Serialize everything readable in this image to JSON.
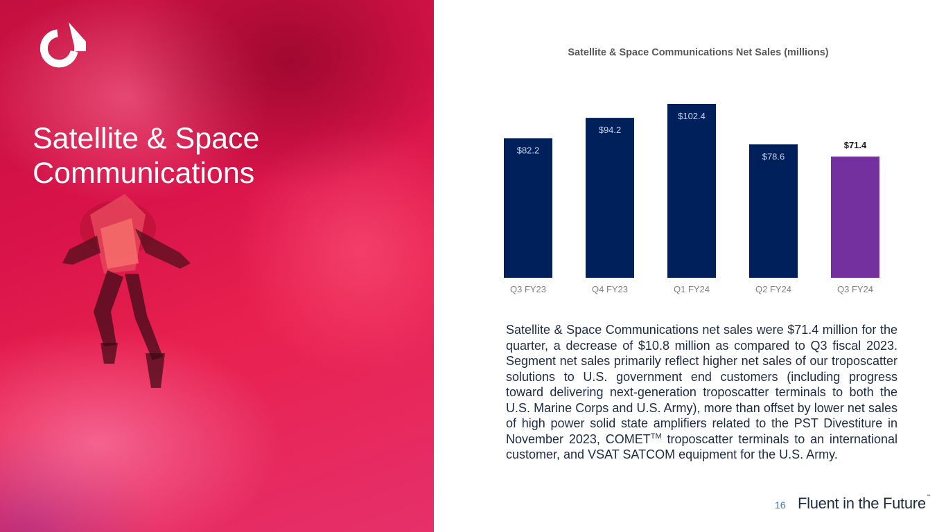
{
  "hero": {
    "title_line1": "Satellite & Space",
    "title_line2": "Communications"
  },
  "colors": {
    "bar_primary": "#00205b",
    "bar_highlight": "#7530a0",
    "label_inside": "#c9d3e6",
    "label_outside": "#1a1a1a",
    "tick": "#7f7f7f"
  },
  "chart_data": {
    "type": "bar",
    "title": "Satellite & Space Communications Net Sales (millions)",
    "categories": [
      "Q3 FY23",
      "Q4 FY23",
      "Q1 FY24",
      "Q2 FY24",
      "Q3 FY24"
    ],
    "values": [
      82.2,
      94.2,
      102.4,
      78.6,
      71.4
    ],
    "labels": [
      "$82.2",
      "$94.2",
      "$102.4",
      "$78.6",
      "$71.4"
    ],
    "highlight_index": 4,
    "xlabel": "",
    "ylabel": "",
    "ylim": [
      0,
      102.4
    ],
    "grid": false,
    "legend": "none"
  },
  "body": {
    "paragraph_before_tm": "Satellite & Space Communications net sales were $71.4 million for the quarter, a decrease of $10.8 million as compared to Q3 fiscal 2023. Segment net sales primarily reflect higher net sales of our troposcatter solutions to U.S. government end customers (including progress toward delivering next-generation troposcatter terminals to both the U.S. Marine Corps and U.S. Army), more than offset by lower net sales of high power solid state amplifiers related to the PST Divestiture in November 2023, COMET",
    "tm": "TM",
    "paragraph_after_tm": " troposcatter terminals to an international customer, and VSAT SATCOM equipment for the U.S. Army."
  },
  "footer": {
    "page_number": "16",
    "tagline": "Fluent in the Future",
    "tagline_tm": "™"
  }
}
